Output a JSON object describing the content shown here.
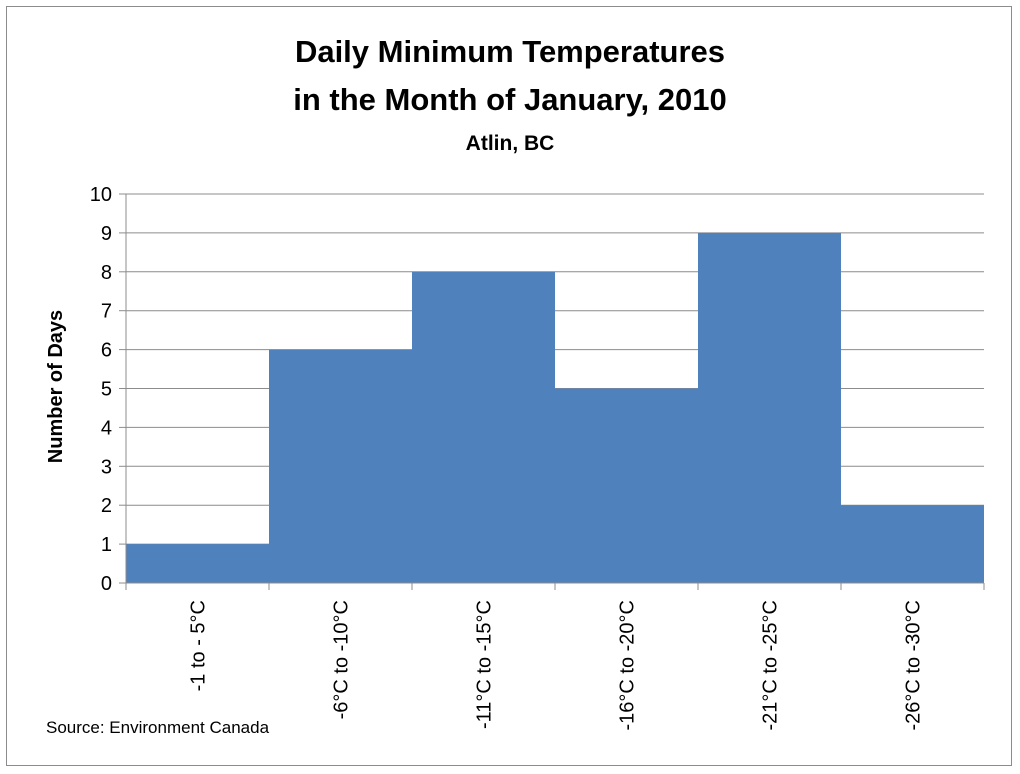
{
  "chart_data": {
    "type": "bar",
    "title": "Daily Minimum Temperatures",
    "title_line2": "in the Month of January, 2010",
    "subtitle": "Atlin, BC",
    "xlabel": "",
    "ylabel": "Number of Days",
    "ylim": [
      0,
      10
    ],
    "yticks": [
      "0",
      "1",
      "2",
      "3",
      "4",
      "5",
      "6",
      "7",
      "8",
      "9",
      "10"
    ],
    "categories": [
      "-1 to - 5°C",
      "-6°C to -10°C",
      "-11°C to -15°C",
      "-16°C to -20°C",
      "-21°C to -25°C",
      "-26°C to -30°C"
    ],
    "values": [
      1,
      6,
      8,
      5,
      9,
      2
    ],
    "bar_color": "#4f81bd",
    "grid": true,
    "legend": "none",
    "source": "Source: Environment Canada"
  }
}
